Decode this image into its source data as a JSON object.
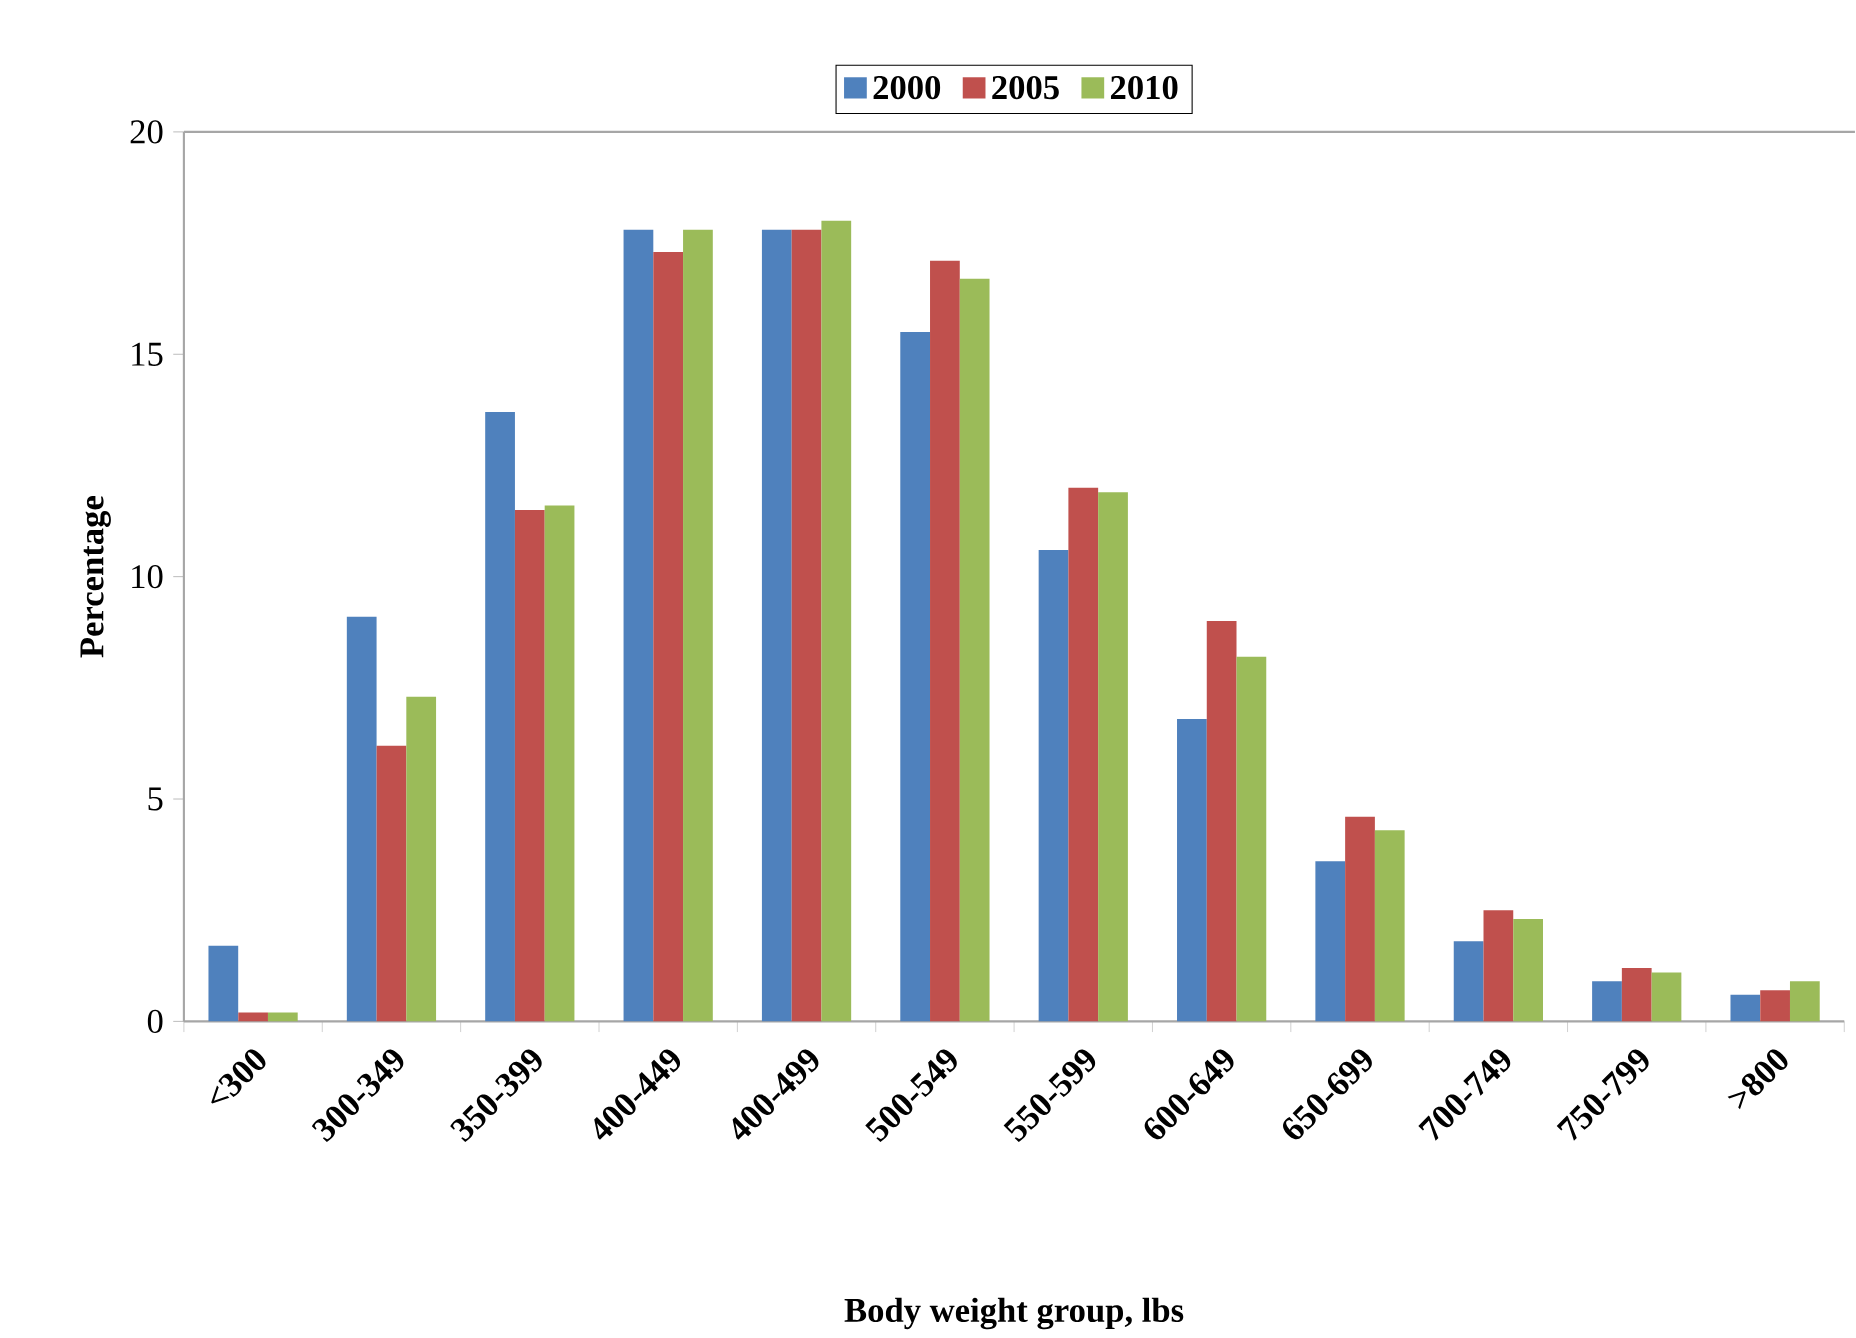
{
  "chart_data": {
    "type": "bar",
    "xlabel": "Body weight group, lbs",
    "ylabel": "Percentage",
    "categories": [
      "<300",
      "300-349",
      "350-399",
      "400-449",
      "400-499",
      "500-549",
      "550-599",
      "600-649",
      "650-699",
      "700-749",
      "750-799",
      ">800"
    ],
    "series": [
      {
        "name": "2000",
        "color": "#4f81bd",
        "values": [
          1.7,
          9.1,
          13.7,
          17.8,
          17.8,
          15.5,
          10.6,
          6.8,
          3.6,
          1.8,
          0.9,
          0.6
        ]
      },
      {
        "name": "2005",
        "color": "#c0504d",
        "values": [
          0.2,
          6.2,
          11.5,
          17.3,
          17.8,
          17.1,
          12.0,
          9.0,
          4.6,
          2.5,
          1.2,
          0.7
        ]
      },
      {
        "name": "2010",
        "color": "#9bbb59",
        "values": [
          0.2,
          7.3,
          11.6,
          17.8,
          18.0,
          16.7,
          11.9,
          8.2,
          4.3,
          2.3,
          1.1,
          0.9
        ]
      }
    ],
    "ylim": [
      0,
      20
    ],
    "yticks": [
      0,
      5,
      10,
      15,
      20
    ],
    "legend": "top"
  }
}
